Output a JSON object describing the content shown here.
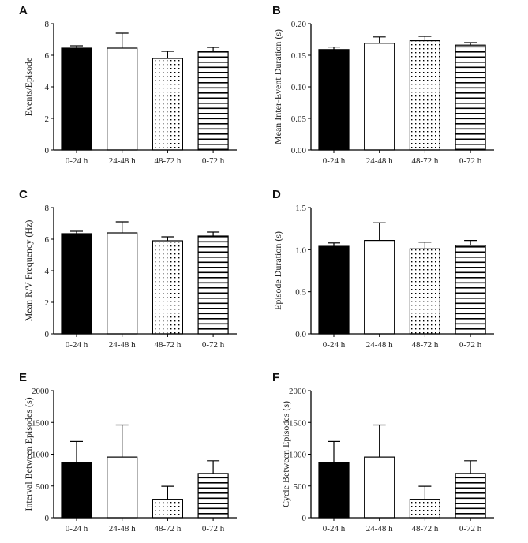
{
  "chart_data": [
    {
      "panel": "A",
      "type": "bar",
      "categories": [
        "0-24 h",
        "24-48 h",
        "48-72 h",
        "0-72 h"
      ],
      "values": [
        6.45,
        6.45,
        5.8,
        6.25
      ],
      "errors": [
        0.15,
        0.95,
        0.45,
        0.25
      ],
      "xlabel": "",
      "ylabel": "Events/Episode",
      "ylim": [
        0,
        8
      ],
      "yticks": [
        "0",
        "2",
        "4",
        "6",
        "8"
      ],
      "grid": false
    },
    {
      "panel": "B",
      "type": "bar",
      "categories": [
        "0-24 h",
        "24-48 h",
        "48-72 h",
        "0-72 h"
      ],
      "values": [
        0.159,
        0.169,
        0.173,
        0.166
      ],
      "errors": [
        0.004,
        0.01,
        0.007,
        0.004
      ],
      "xlabel": "",
      "ylabel": "Mean Inter-Event Duration (s)",
      "ylim": [
        0,
        0.2
      ],
      "yticks": [
        "0.00",
        "0.05",
        "0.10",
        "0.15",
        "0.20"
      ],
      "grid": false
    },
    {
      "panel": "C",
      "type": "bar",
      "categories": [
        "0-24 h",
        "24-48 h",
        "48-72 h",
        "0-72 h"
      ],
      "values": [
        6.35,
        6.4,
        5.9,
        6.2
      ],
      "errors": [
        0.15,
        0.7,
        0.25,
        0.25
      ],
      "xlabel": "",
      "ylabel": "Mean R/V Frequency (Hz)",
      "ylim": [
        0,
        8
      ],
      "yticks": [
        "0",
        "2",
        "4",
        "6",
        "8"
      ],
      "grid": false
    },
    {
      "panel": "D",
      "type": "bar",
      "categories": [
        "0-24 h",
        "24-48 h",
        "48-72 h",
        "0-72 h"
      ],
      "values": [
        1.04,
        1.11,
        1.01,
        1.05
      ],
      "errors": [
        0.04,
        0.21,
        0.08,
        0.06
      ],
      "xlabel": "",
      "ylabel": "Episode Duration (s)",
      "ylim": [
        0,
        1.5
      ],
      "yticks": [
        "0.0",
        "0.5",
        "1.0",
        "1.5"
      ],
      "grid": false
    },
    {
      "panel": "E",
      "type": "bar",
      "categories": [
        "0-24 h",
        "24-48 h",
        "48-72 h",
        "0-72 h"
      ],
      "values": [
        865,
        955,
        290,
        697
      ],
      "errors": [
        335,
        505,
        205,
        200
      ],
      "xlabel": "",
      "ylabel": "Interval Between Episodes (s)",
      "ylim": [
        0,
        2000
      ],
      "yticks": [
        "0",
        "500",
        "1000",
        "1500",
        "2000"
      ],
      "grid": false
    },
    {
      "panel": "F",
      "type": "bar",
      "categories": [
        "0-24 h",
        "24-48 h",
        "48-72 h",
        "0-72 h"
      ],
      "values": [
        865,
        955,
        290,
        697
      ],
      "errors": [
        335,
        505,
        205,
        200
      ],
      "xlabel": "",
      "ylabel": "Cycle Between Episodes (s)",
      "ylim": [
        0,
        2000
      ],
      "yticks": [
        "0",
        "500",
        "1000",
        "1500",
        "2000"
      ],
      "grid": false
    }
  ],
  "bar_styles": [
    "solid-black",
    "white",
    "dotted",
    "horizontal-stripes"
  ],
  "colors": {
    "ink": "#000000",
    "background": "#ffffff"
  }
}
